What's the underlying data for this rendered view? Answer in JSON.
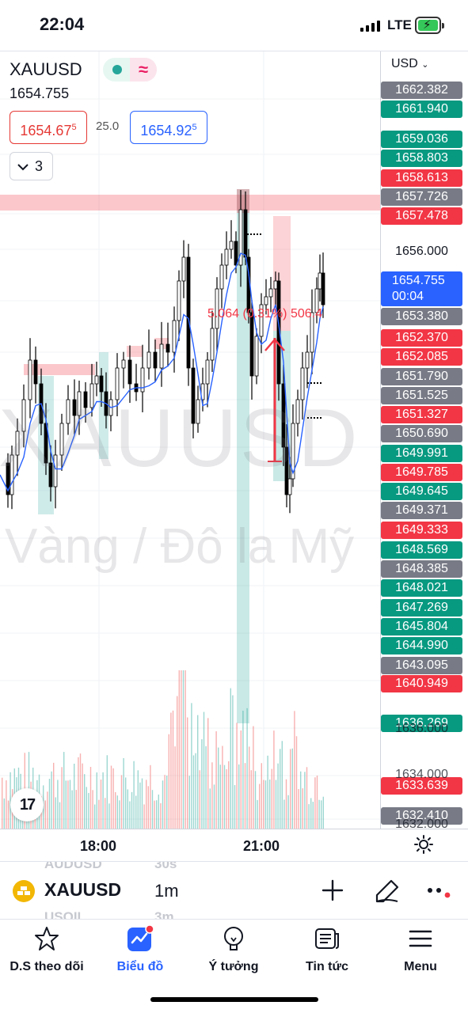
{
  "status_bar": {
    "time": "22:04",
    "network": "LTE",
    "battery_charging": true
  },
  "header": {
    "symbol": "XAUUSD",
    "last_price": "1654.755",
    "bid": {
      "main": "1654.67",
      "sup": "5"
    },
    "spread": "25.0",
    "ask": {
      "main": "1654.92",
      "sup": "5"
    },
    "indicator_count": "3",
    "pill_icon": "wave-icon"
  },
  "watermark": {
    "line1": "XAUUSD  1",
    "line2": "Vàng / Đô la Mỹ"
  },
  "measure_label": "5.064 (0.31%) 506.4",
  "price_axis": {
    "currency": "USD",
    "tags": [
      {
        "value": "1662.382",
        "style": "gray"
      },
      {
        "value": "1661.940",
        "style": "green"
      },
      {
        "value": "1659.036",
        "style": "green"
      },
      {
        "value": "1658.803",
        "style": "green"
      },
      {
        "value": "1658.613",
        "style": "red"
      },
      {
        "value": "1657.726",
        "style": "gray"
      },
      {
        "value": "1657.478",
        "style": "red"
      },
      {
        "value": "1656.000",
        "style": "plain"
      },
      {
        "value": "1653.380",
        "style": "gray"
      },
      {
        "value": "1652.370",
        "style": "red"
      },
      {
        "value": "1652.085",
        "style": "red"
      },
      {
        "value": "1651.790",
        "style": "gray"
      },
      {
        "value": "1651.525",
        "style": "gray"
      },
      {
        "value": "1651.327",
        "style": "red"
      },
      {
        "value": "1650.690",
        "style": "gray"
      },
      {
        "value": "1649.991",
        "style": "green"
      },
      {
        "value": "1649.785",
        "style": "red"
      },
      {
        "value": "1649.645",
        "style": "green"
      },
      {
        "value": "1649.371",
        "style": "gray"
      },
      {
        "value": "1649.333",
        "style": "red"
      },
      {
        "value": "1648.569",
        "style": "green"
      },
      {
        "value": "1648.385",
        "style": "gray"
      },
      {
        "value": "1648.021",
        "style": "green"
      },
      {
        "value": "1647.269",
        "style": "green"
      },
      {
        "value": "1645.804",
        "style": "green"
      },
      {
        "value": "1644.990",
        "style": "green"
      },
      {
        "value": "1643.095",
        "style": "gray"
      },
      {
        "value": "1640.949",
        "style": "red"
      },
      {
        "value": "1636.269",
        "style": "green"
      },
      {
        "value": "1633.639",
        "style": "red"
      },
      {
        "value": "1632.410",
        "style": "gray"
      }
    ],
    "live": {
      "price": "1654.755",
      "countdown": "00:04"
    },
    "ghost_ticks": [
      "1636.000",
      "1634.000",
      "1632.000"
    ]
  },
  "time_axis": {
    "labels": [
      "18:00",
      "21:00"
    ]
  },
  "symbol_bar": {
    "symbol": "XAUUSD",
    "interval": "1m",
    "ghost_above": {
      "symbol": "AUDUSD",
      "interval": "30s"
    },
    "ghost_below": {
      "symbol": "USOIL",
      "interval": "3m"
    }
  },
  "tabs": [
    {
      "label": "D.S theo dõi",
      "icon": "star-icon",
      "active": false
    },
    {
      "label": "Biểu đồ",
      "icon": "chart-icon",
      "active": true
    },
    {
      "label": "Ý tưởng",
      "icon": "lightbulb-icon",
      "active": false
    },
    {
      "label": "Tin tức",
      "icon": "news-icon",
      "active": false
    },
    {
      "label": "Menu",
      "icon": "menu-icon",
      "active": false
    }
  ],
  "colors": {
    "up": "#26a69a",
    "down": "#ef5350",
    "accent": "#2962ff",
    "ma_line": "#2962ff"
  }
}
